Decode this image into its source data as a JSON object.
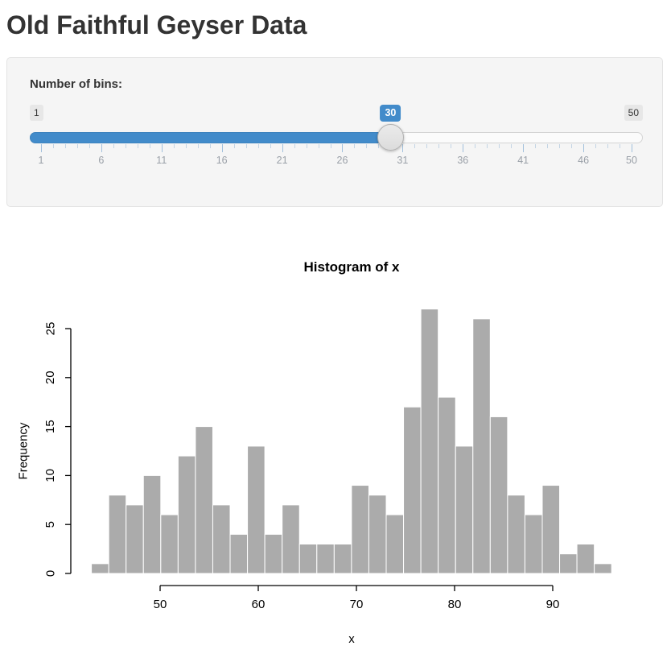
{
  "header": {
    "title": "Old Faithful Geyser Data"
  },
  "slider": {
    "label": "Number of bins:",
    "min": 1,
    "max": 50,
    "value": 30,
    "min_label": "1",
    "max_label": "50",
    "value_label": "30",
    "grid_labels": [
      1,
      6,
      11,
      16,
      21,
      26,
      31,
      36,
      41,
      46,
      50
    ],
    "accent_color": "#428bca",
    "accent_border": "#3e83be"
  },
  "chart_data": {
    "type": "bar",
    "title": "Histogram of x",
    "xlabel": "x",
    "ylabel": "Frequency",
    "bin_start": 43,
    "bin_end": 96,
    "counts": [
      1,
      8,
      7,
      10,
      6,
      12,
      15,
      7,
      4,
      13,
      4,
      7,
      3,
      3,
      3,
      9,
      8,
      6,
      17,
      27,
      18,
      13,
      26,
      16,
      8,
      6,
      9,
      2,
      3,
      1
    ],
    "x_ticks": [
      50,
      60,
      70,
      80,
      90
    ],
    "y_ticks": [
      0,
      5,
      10,
      15,
      20,
      25
    ],
    "ylim": [
      0,
      27
    ],
    "grid": false,
    "bar_fill": "#ababab",
    "bar_border": "#ffffff",
    "axis_color": "#000000"
  }
}
